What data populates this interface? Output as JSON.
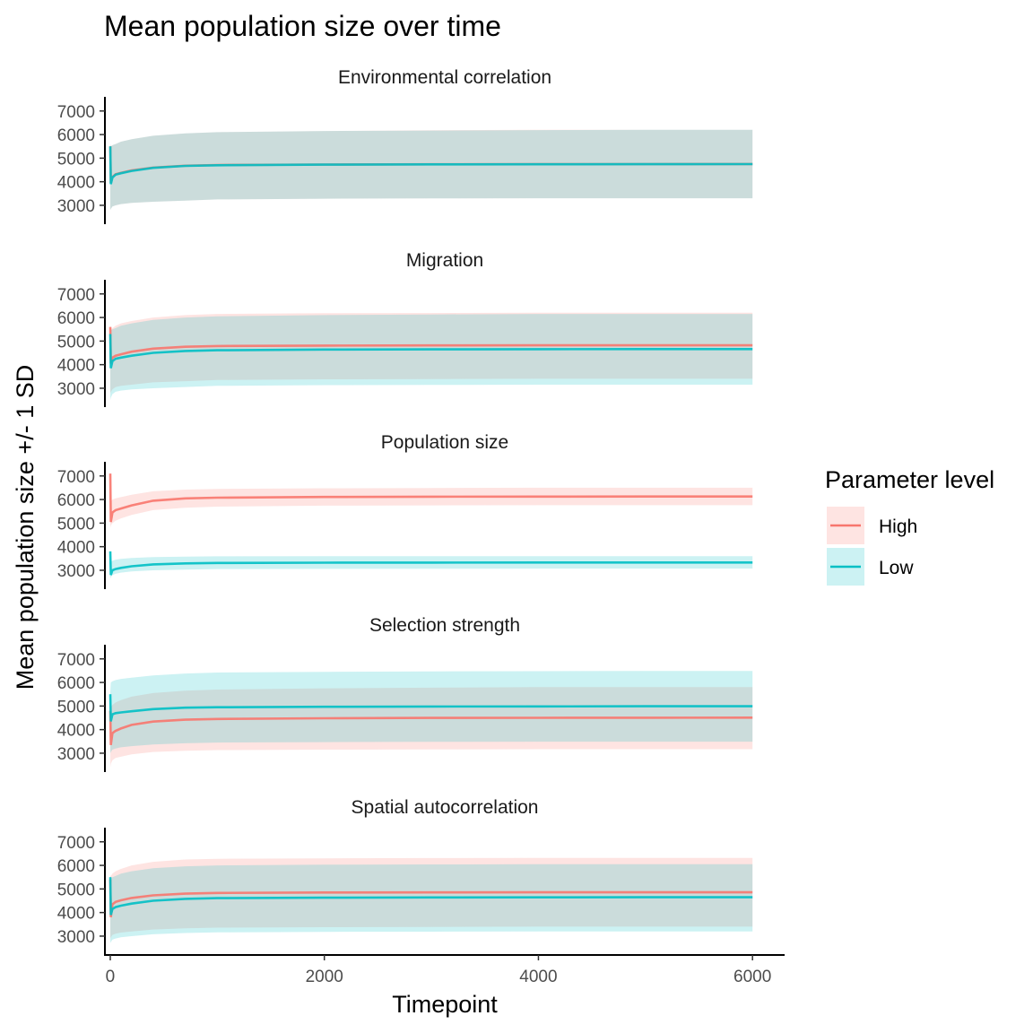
{
  "chart_data": {
    "type": "area",
    "title": "Mean population size over time",
    "xlabel": "Timepoint",
    "ylabel": "Mean population size +/- 1 SD",
    "xlim": [
      -50,
      6300
    ],
    "ylim": [
      2200,
      7600
    ],
    "x_ticks": [
      0,
      2000,
      4000,
      6000
    ],
    "x_tick_labels": [
      "0",
      "2000",
      "4000",
      "6000"
    ],
    "y_ticks": [
      3000,
      4000,
      5000,
      6000,
      7000
    ],
    "y_tick_labels": [
      "3000",
      "4000",
      "5000",
      "6000",
      "7000"
    ],
    "legend": {
      "title": "Parameter level",
      "position": "right",
      "entries": [
        {
          "label": "High",
          "color": "#F8766D"
        },
        {
          "label": "Low",
          "color": "#00BFC4"
        }
      ]
    },
    "colors": {
      "High": "#F8766D",
      "Low": "#00BFC4"
    },
    "grid": false,
    "facets": [
      {
        "title": "Environmental correlation",
        "series": [
          {
            "level": "High",
            "x": [
              0,
              5,
              20,
              50,
              100,
              200,
              400,
              700,
              1000,
              2000,
              3000,
              4000,
              5000,
              6000
            ],
            "mean": [
              5500,
              3950,
              4200,
              4320,
              4380,
              4480,
              4600,
              4680,
              4710,
              4730,
              4740,
              4745,
              4748,
              4750
            ],
            "lower": [
              2800,
              2850,
              2950,
              3000,
              3050,
              3100,
              3150,
              3200,
              3250,
              3280,
              3290,
              3300,
              3300,
              3300
            ],
            "upper": [
              5600,
              5500,
              5550,
              5600,
              5700,
              5800,
              5950,
              6050,
              6100,
              6150,
              6180,
              6200,
              6200,
              6200
            ]
          },
          {
            "level": "Low",
            "x": [
              0,
              5,
              20,
              50,
              100,
              200,
              400,
              700,
              1000,
              2000,
              3000,
              4000,
              5000,
              6000
            ],
            "mean": [
              5500,
              3900,
              4180,
              4300,
              4360,
              4460,
              4590,
              4670,
              4700,
              4725,
              4735,
              4740,
              4745,
              4748
            ],
            "lower": [
              2800,
              2850,
              2950,
              3000,
              3050,
              3100,
              3150,
              3200,
              3250,
              3280,
              3290,
              3300,
              3300,
              3300
            ],
            "upper": [
              5600,
              5500,
              5550,
              5600,
              5700,
              5800,
              5950,
              6050,
              6100,
              6150,
              6170,
              6190,
              6200,
              6200
            ]
          }
        ]
      },
      {
        "title": "Migration",
        "series": [
          {
            "level": "High",
            "x": [
              0,
              5,
              20,
              50,
              100,
              200,
              400,
              700,
              1000,
              2000,
              3000,
              4000,
              5000,
              6000
            ],
            "mean": [
              5600,
              4050,
              4300,
              4380,
              4440,
              4550,
              4680,
              4760,
              4790,
              4810,
              4815,
              4820,
              4820,
              4820
            ],
            "lower": [
              2800,
              2850,
              2950,
              3050,
              3100,
              3150,
              3250,
              3300,
              3350,
              3380,
              3390,
              3400,
              3400,
              3400
            ],
            "upper": [
              5700,
              5500,
              5550,
              5650,
              5750,
              5850,
              6000,
              6100,
              6150,
              6180,
              6190,
              6200,
              6200,
              6200
            ]
          },
          {
            "level": "Low",
            "x": [
              0,
              5,
              20,
              50,
              100,
              200,
              400,
              700,
              1000,
              2000,
              3000,
              4000,
              5000,
              6000
            ],
            "mean": [
              5300,
              3850,
              4150,
              4250,
              4300,
              4380,
              4500,
              4580,
              4610,
              4640,
              4650,
              4655,
              4660,
              4660
            ],
            "lower": [
              2500,
              2600,
              2750,
              2850,
              2900,
              2950,
              3000,
              3050,
              3100,
              3130,
              3140,
              3150,
              3150,
              3150
            ],
            "upper": [
              5500,
              5450,
              5500,
              5550,
              5650,
              5750,
              5900,
              6000,
              6050,
              6100,
              6130,
              6150,
              6150,
              6150
            ]
          }
        ]
      },
      {
        "title": "Population size",
        "series": [
          {
            "level": "High",
            "x": [
              0,
              5,
              20,
              50,
              100,
              200,
              400,
              700,
              1000,
              2000,
              3000,
              4000,
              5000,
              6000
            ],
            "mean": [
              7100,
              5050,
              5450,
              5550,
              5620,
              5750,
              5950,
              6050,
              6080,
              6110,
              6120,
              6125,
              6130,
              6130
            ],
            "lower": [
              4800,
              4900,
              5000,
              5100,
              5200,
              5350,
              5550,
              5650,
              5700,
              5740,
              5750,
              5760,
              5760,
              5760
            ],
            "upper": [
              7200,
              5900,
              6000,
              6050,
              6100,
              6200,
              6350,
              6420,
              6450,
              6480,
              6490,
              6500,
              6500,
              6500
            ]
          },
          {
            "level": "Low",
            "x": [
              0,
              5,
              20,
              50,
              100,
              200,
              400,
              700,
              1000,
              2000,
              3000,
              4000,
              5000,
              6000
            ],
            "mean": [
              3800,
              2800,
              3000,
              3050,
              3100,
              3170,
              3250,
              3290,
              3310,
              3320,
              3325,
              3330,
              3330,
              3330
            ],
            "lower": [
              2650,
              2700,
              2800,
              2850,
              2900,
              2950,
              3000,
              3030,
              3050,
              3060,
              3065,
              3070,
              3070,
              3070
            ],
            "upper": [
              3900,
              3350,
              3400,
              3450,
              3480,
              3520,
              3560,
              3580,
              3590,
              3600,
              3600,
              3600,
              3600,
              3600
            ]
          }
        ]
      },
      {
        "title": "Selection strength",
        "series": [
          {
            "level": "High",
            "x": [
              0,
              5,
              20,
              50,
              100,
              200,
              400,
              700,
              1000,
              2000,
              3000,
              4000,
              5000,
              6000
            ],
            "mean": [
              4800,
              3350,
              3850,
              3950,
              4050,
              4200,
              4340,
              4420,
              4450,
              4480,
              4495,
              4500,
              4505,
              4510
            ],
            "lower": [
              2400,
              2550,
              2700,
              2800,
              2850,
              2950,
              3050,
              3100,
              3130,
              3150,
              3160,
              3170,
              3170,
              3170
            ],
            "upper": [
              4900,
              4950,
              5050,
              5150,
              5250,
              5400,
              5550,
              5650,
              5700,
              5750,
              5780,
              5800,
              5800,
              5800
            ]
          },
          {
            "level": "Low",
            "x": [
              0,
              5,
              20,
              50,
              100,
              200,
              400,
              700,
              1000,
              2000,
              3000,
              4000,
              5000,
              6000
            ],
            "mean": [
              5500,
              4350,
              4650,
              4700,
              4730,
              4780,
              4870,
              4930,
              4950,
              4970,
              4980,
              4985,
              4990,
              4990
            ],
            "lower": [
              3000,
              3050,
              3150,
              3200,
              3250,
              3300,
              3370,
              3420,
              3450,
              3470,
              3480,
              3490,
              3490,
              3490
            ],
            "upper": [
              5600,
              6000,
              6050,
              6100,
              6150,
              6200,
              6300,
              6380,
              6420,
              6450,
              6470,
              6480,
              6490,
              6490
            ]
          }
        ]
      },
      {
        "title": "Spatial autocorrelation",
        "series": [
          {
            "level": "High",
            "x": [
              0,
              5,
              20,
              50,
              100,
              200,
              400,
              700,
              1000,
              2000,
              3000,
              4000,
              5000,
              6000
            ],
            "mean": [
              5400,
              3800,
              4350,
              4450,
              4520,
              4620,
              4730,
              4800,
              4830,
              4850,
              4855,
              4860,
              4860,
              4860
            ],
            "lower": [
              2900,
              2950,
              3050,
              3100,
              3150,
              3200,
              3280,
              3330,
              3360,
              3380,
              3390,
              3400,
              3400,
              3400
            ],
            "upper": [
              5500,
              5550,
              5650,
              5750,
              5850,
              6000,
              6150,
              6250,
              6280,
              6300,
              6310,
              6320,
              6320,
              6320
            ]
          },
          {
            "level": "Low",
            "x": [
              0,
              5,
              20,
              50,
              100,
              200,
              400,
              700,
              1000,
              2000,
              3000,
              4000,
              5000,
              6000
            ],
            "mean": [
              5500,
              3900,
              4150,
              4230,
              4290,
              4380,
              4500,
              4580,
              4610,
              4630,
              4640,
              4645,
              4650,
              4650
            ],
            "lower": [
              2700,
              2750,
              2850,
              2900,
              2950,
              3000,
              3080,
              3130,
              3160,
              3180,
              3190,
              3200,
              3200,
              3200
            ],
            "upper": [
              5600,
              5450,
              5500,
              5550,
              5650,
              5750,
              5880,
              5960,
              6000,
              6030,
              6040,
              6050,
              6050,
              6050
            ]
          }
        ]
      }
    ]
  }
}
